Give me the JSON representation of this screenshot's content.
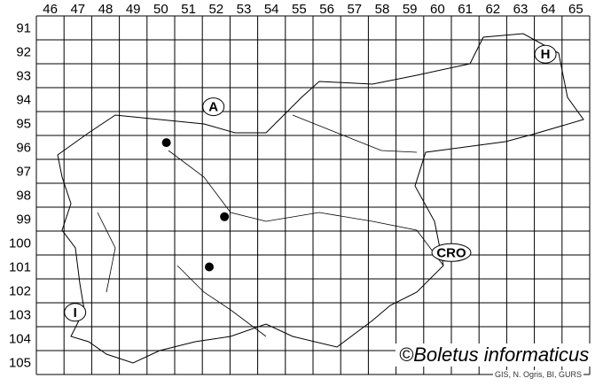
{
  "map": {
    "columns": [
      "46",
      "47",
      "48",
      "49",
      "50",
      "51",
      "52",
      "53",
      "54",
      "55",
      "56",
      "57",
      "58",
      "59",
      "60",
      "61",
      "62",
      "63",
      "64",
      "65"
    ],
    "rows": [
      "91",
      "92",
      "93",
      "94",
      "95",
      "96",
      "97",
      "98",
      "99",
      "100",
      "101",
      "102",
      "103",
      "104",
      "105"
    ],
    "country_labels": [
      {
        "text": "A",
        "col": 52.4,
        "row": 94.8
      },
      {
        "text": "H",
        "col": 64.4,
        "row": 92.6
      },
      {
        "text": "CRO",
        "col": 61.0,
        "row": 100.9
      },
      {
        "text": "I",
        "col": 47.4,
        "row": 103.4
      }
    ],
    "records": [
      {
        "col": 50.7,
        "row": 96.3
      },
      {
        "col": 52.8,
        "row": 99.4
      },
      {
        "col": 52.25,
        "row": 101.5
      }
    ],
    "copyright": "©Boletus informaticus",
    "source": "GIS, N. Ogris, BI, GURS"
  }
}
